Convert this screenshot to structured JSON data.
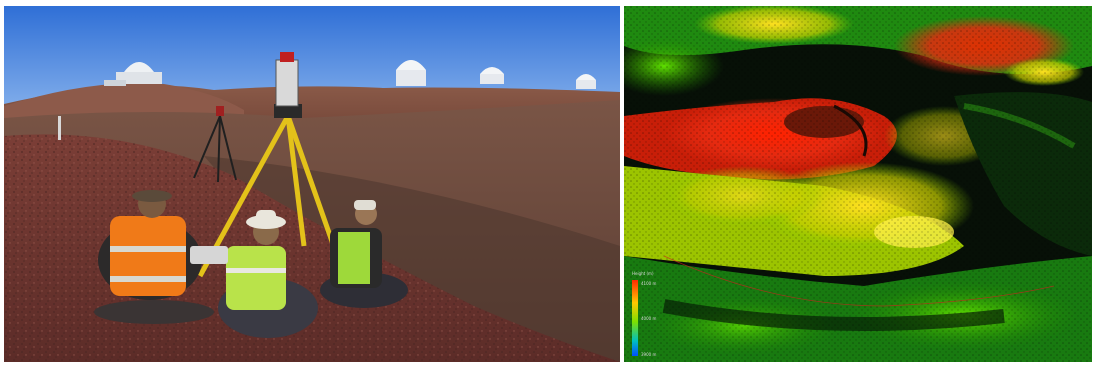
{
  "left_panel": {
    "subject": "survey-scene-photo",
    "icons": [
      "telescope-dome-icon",
      "survey-tripod-icon",
      "surveyor-icon"
    ]
  },
  "right_panel": {
    "subject": "point-cloud-height-map",
    "legend": {
      "title": "Height (m)",
      "max_label": "4100 m",
      "mid_label": "4000 m",
      "min_label": "3900 m",
      "colors": [
        "#ff2a00",
        "#ffc800",
        "#7de000",
        "#00c0c0",
        "#0050ff"
      ]
    }
  }
}
